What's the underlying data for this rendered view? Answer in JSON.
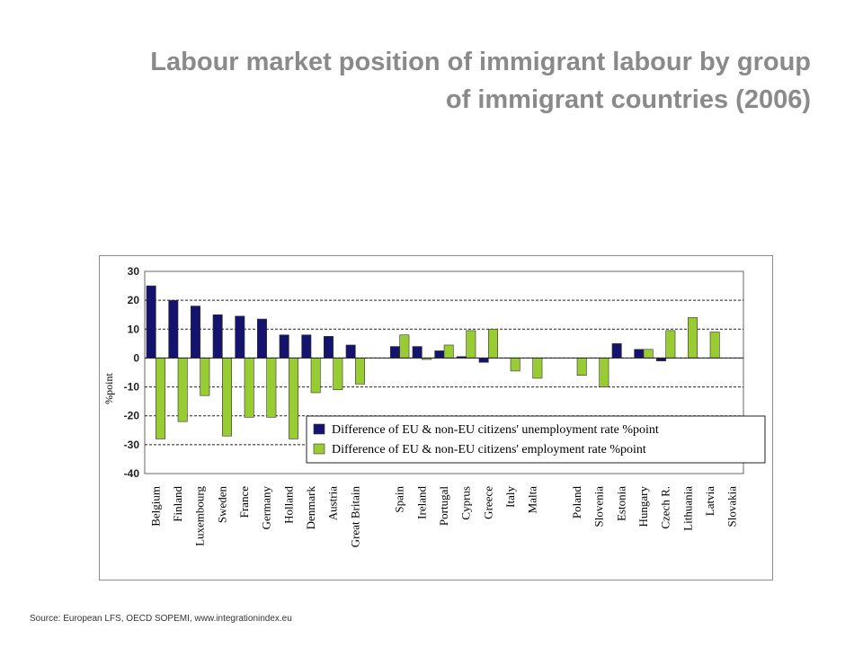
{
  "slide": {
    "title_line1": "Labour market position of immigrant labour by group",
    "title_line2": "of immigrant countries (2006)",
    "source": "Source: European LFS, OECD SOPEMI, www.integrationindex.eu"
  },
  "chart_data": {
    "type": "bar",
    "ylabel": "%point",
    "ylim": [
      -40,
      30
    ],
    "yticks": [
      30,
      20,
      10,
      0,
      -10,
      -20,
      -30,
      -40
    ],
    "grid": "dashed horizontal",
    "legend_placement": "center-right (inside plot)",
    "categories": [
      "Belgium",
      "Finland",
      "Luxembourg",
      "Sweden",
      "France",
      "Germany",
      "Holland",
      "Denmark",
      "Austria",
      "Great Britain",
      "",
      "Spain",
      "Ireland",
      "Portugal",
      "Cyprus",
      "Greece",
      "Italy",
      "Malta",
      "",
      "Poland",
      "Slovenia",
      "Estonia",
      "Hungary",
      "Czech R.",
      "Lithuania",
      "Latvia",
      "Slovakia"
    ],
    "series": [
      {
        "name": "Difference of EU & non-EU citizens' unemployment rate %point",
        "color": "#14146e",
        "values": [
          25,
          20,
          18,
          15,
          14.5,
          13.5,
          8,
          8,
          7.5,
          4.5,
          null,
          4,
          4,
          2.5,
          0.5,
          -1.5,
          0,
          0,
          null,
          0,
          0,
          5,
          3,
          -1,
          0,
          0,
          0
        ]
      },
      {
        "name": "Difference of EU & non-EU citizens' employment rate %point",
        "color": "#99cc33",
        "values": [
          -28,
          -22,
          -13,
          -27,
          -20.5,
          -20.5,
          -28,
          -12,
          -11,
          -9,
          null,
          8,
          -0.5,
          4.5,
          9.5,
          10,
          -4.5,
          -7,
          null,
          -6,
          -10,
          0,
          3,
          9.5,
          14,
          9,
          0
        ]
      }
    ]
  }
}
